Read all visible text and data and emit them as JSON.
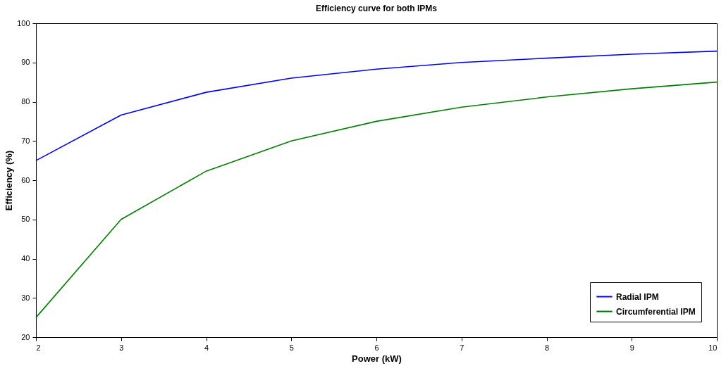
{
  "chart_data": {
    "type": "line",
    "title": "Efficiency curve for both IPMs",
    "xlabel": "Power (kW)",
    "ylabel": "Efficiency (%)",
    "x": [
      2,
      3,
      4,
      5,
      6,
      7,
      8,
      9,
      10
    ],
    "series": [
      {
        "name": "Radial IPM",
        "color": "#0000ff",
        "values": [
          65,
          76.6,
          82.4,
          86,
          88.3,
          90,
          91.1,
          92.1,
          92.9
        ]
      },
      {
        "name": "Circumferential IPM",
        "color": "#008000",
        "values": [
          25,
          50,
          62.3,
          70,
          75,
          78.6,
          81.2,
          83.3,
          85
        ]
      }
    ],
    "xlim": [
      2,
      10
    ],
    "xticks": [
      2,
      3,
      4,
      5,
      6,
      7,
      8,
      9,
      10
    ],
    "ylim": [
      20,
      100
    ],
    "yticks": [
      20,
      30,
      40,
      50,
      60,
      70,
      80,
      90,
      100
    ],
    "grid": false,
    "legend": "bottom right",
    "line_style": "solid"
  }
}
